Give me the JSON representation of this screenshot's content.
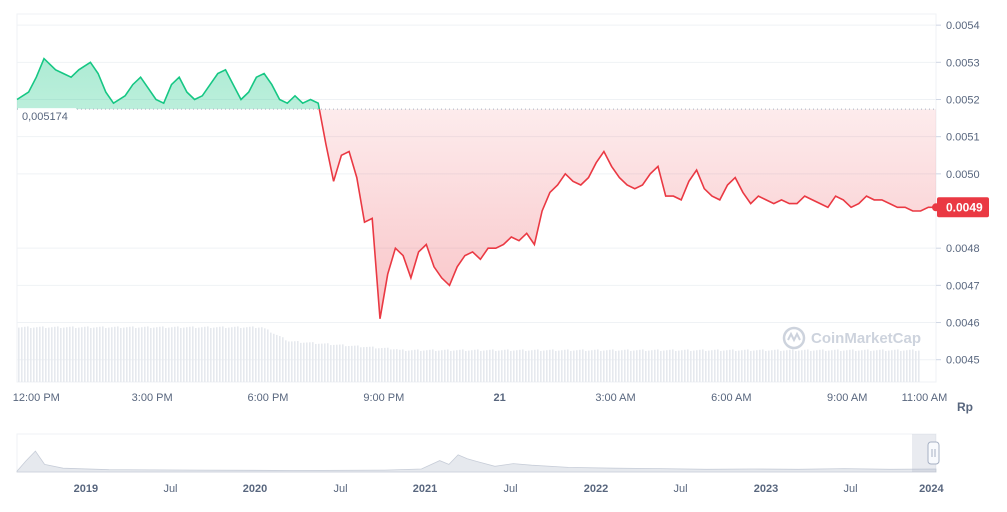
{
  "chart_data": {
    "type": "line",
    "currency_label": "Rp",
    "reference": {
      "value": 0.005174,
      "label": "0,005174"
    },
    "current": {
      "value": 0.00491,
      "label": "0.0049"
    },
    "ylim": [
      0.00444,
      0.00543
    ],
    "yticks": [
      {
        "value": 0.0054,
        "label": "0.0054"
      },
      {
        "value": 0.0053,
        "label": "0.0053"
      },
      {
        "value": 0.0052,
        "label": "0.0052"
      },
      {
        "value": 0.0051,
        "label": "0.0051"
      },
      {
        "value": 0.005,
        "label": "0.0050"
      },
      {
        "value": 0.0048,
        "label": "0.0048"
      },
      {
        "value": 0.0047,
        "label": "0.0047"
      },
      {
        "value": 0.0046,
        "label": "0.0046"
      },
      {
        "value": 0.0045,
        "label": "0.0045"
      }
    ],
    "xlim_hours": [
      11.5,
      35.3
    ],
    "xticks": [
      {
        "hour": 12,
        "label": "12:00 PM",
        "bold": false
      },
      {
        "hour": 15,
        "label": "3:00 PM",
        "bold": false
      },
      {
        "hour": 18,
        "label": "6:00 PM",
        "bold": false
      },
      {
        "hour": 21,
        "label": "9:00 PM",
        "bold": false
      },
      {
        "hour": 24,
        "label": "21",
        "bold": true
      },
      {
        "hour": 27,
        "label": "3:00 AM",
        "bold": false
      },
      {
        "hour": 30,
        "label": "6:00 AM",
        "bold": false
      },
      {
        "hour": 33,
        "label": "9:00 AM",
        "bold": false
      },
      {
        "hour": 35,
        "label": "11:00 AM",
        "bold": false
      }
    ],
    "series": [
      {
        "x": [
          11.5,
          11.8,
          12.0,
          12.2,
          12.5,
          12.7,
          12.9,
          13.1,
          13.4,
          13.6,
          13.8,
          14.0,
          14.3,
          14.5,
          14.7,
          14.9,
          15.1,
          15.3,
          15.5,
          15.7,
          15.9,
          16.1,
          16.3,
          16.5,
          16.7,
          16.9,
          17.1,
          17.3,
          17.5,
          17.7,
          17.9,
          18.1,
          18.3,
          18.5,
          18.7,
          18.9,
          19.1,
          19.3,
          19.5,
          19.7,
          19.9,
          20.1,
          20.3,
          20.5,
          20.7,
          20.9,
          21.1,
          21.3,
          21.5,
          21.7,
          21.9,
          22.1,
          22.3,
          22.5,
          22.7,
          22.9,
          23.1,
          23.3,
          23.5,
          23.7,
          23.9,
          24.1,
          24.3,
          24.5,
          24.7,
          24.9,
          25.1,
          25.3,
          25.5,
          25.7,
          25.9,
          26.1,
          26.3,
          26.5,
          26.7,
          26.9,
          27.1,
          27.3,
          27.5,
          27.7,
          27.9,
          28.1,
          28.3,
          28.5,
          28.7,
          28.9,
          29.1,
          29.3,
          29.5,
          29.7,
          29.9,
          30.1,
          30.3,
          30.5,
          30.7,
          30.9,
          31.1,
          31.3,
          31.5,
          31.7,
          31.9,
          32.1,
          32.3,
          32.5,
          32.7,
          32.9,
          33.1,
          33.3,
          33.5,
          33.7,
          33.9,
          34.1,
          34.3,
          34.5,
          34.7,
          34.9,
          35.1,
          35.3
        ],
        "y": [
          0.0052,
          0.00522,
          0.00526,
          0.00531,
          0.00528,
          0.00527,
          0.00526,
          0.00528,
          0.0053,
          0.00527,
          0.00522,
          0.00519,
          0.00521,
          0.00524,
          0.00526,
          0.00523,
          0.0052,
          0.00519,
          0.00524,
          0.00526,
          0.00522,
          0.0052,
          0.00521,
          0.00524,
          0.00527,
          0.00528,
          0.00524,
          0.0052,
          0.00522,
          0.00526,
          0.00527,
          0.00524,
          0.0052,
          0.00519,
          0.00521,
          0.00519,
          0.0052,
          0.00519,
          0.00508,
          0.00498,
          0.00505,
          0.00506,
          0.00499,
          0.00487,
          0.00488,
          0.00461,
          0.00473,
          0.0048,
          0.00478,
          0.00472,
          0.00479,
          0.00481,
          0.00475,
          0.00472,
          0.0047,
          0.00475,
          0.00478,
          0.00479,
          0.00477,
          0.0048,
          0.0048,
          0.00481,
          0.00483,
          0.00482,
          0.00484,
          0.00481,
          0.0049,
          0.00495,
          0.00497,
          0.005,
          0.00498,
          0.00497,
          0.00499,
          0.00503,
          0.00506,
          0.00502,
          0.00499,
          0.00497,
          0.00496,
          0.00497,
          0.005,
          0.00502,
          0.00494,
          0.00494,
          0.00493,
          0.00498,
          0.00501,
          0.00496,
          0.00494,
          0.00493,
          0.00497,
          0.00499,
          0.00495,
          0.00492,
          0.00494,
          0.00493,
          0.00492,
          0.00493,
          0.00492,
          0.00492,
          0.00494,
          0.00493,
          0.00492,
          0.00491,
          0.00494,
          0.00493,
          0.00491,
          0.00492,
          0.00494,
          0.00493,
          0.00493,
          0.00492,
          0.00491,
          0.00491,
          0.0049,
          0.0049,
          0.00491,
          0.00491
        ]
      }
    ],
    "watermark": "CoinMarketCap",
    "navigator": {
      "labels": [
        {
          "pos": 0.075,
          "label": "2019",
          "bold": true
        },
        {
          "pos": 0.167,
          "label": "Jul",
          "bold": false
        },
        {
          "pos": 0.259,
          "label": "2020",
          "bold": true
        },
        {
          "pos": 0.352,
          "label": "Jul",
          "bold": false
        },
        {
          "pos": 0.444,
          "label": "2021",
          "bold": true
        },
        {
          "pos": 0.537,
          "label": "Jul",
          "bold": false
        },
        {
          "pos": 0.63,
          "label": "2022",
          "bold": true
        },
        {
          "pos": 0.722,
          "label": "Jul",
          "bold": false
        },
        {
          "pos": 0.815,
          "label": "2023",
          "bold": true
        },
        {
          "pos": 0.907,
          "label": "Jul",
          "bold": false
        },
        {
          "pos": 0.995,
          "label": "2024",
          "bold": true
        }
      ]
    }
  }
}
